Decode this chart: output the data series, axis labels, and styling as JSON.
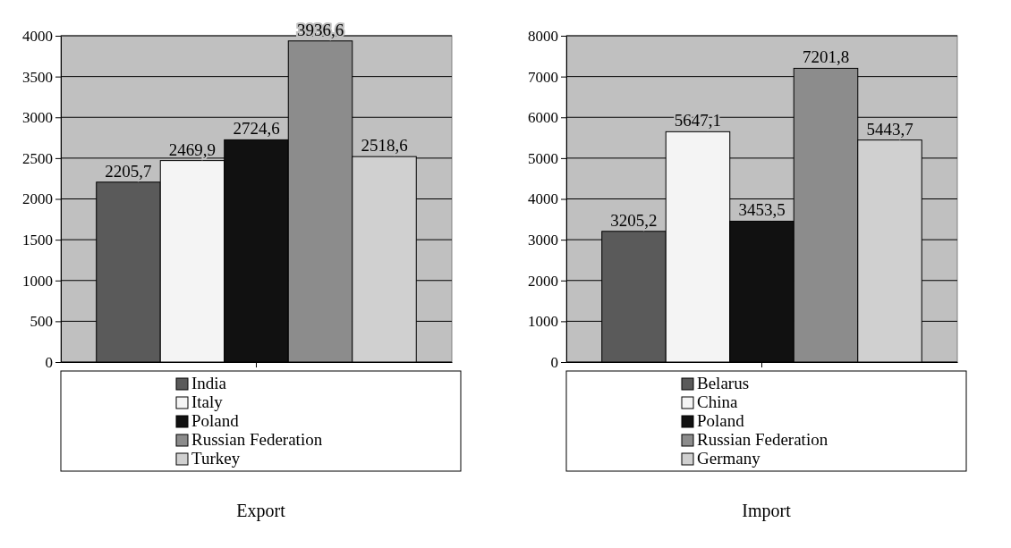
{
  "chart_data": [
    {
      "type": "bar",
      "title": "Export",
      "categories": [
        null
      ],
      "ylim": [
        0,
        4000
      ],
      "yticks": [
        0,
        500,
        1000,
        1500,
        2000,
        2500,
        3000,
        3500,
        4000
      ],
      "grid": "y",
      "legend": "bottom",
      "series": [
        {
          "name": "India",
          "color": "#5a5a5a",
          "values": [
            2205.7
          ],
          "value_labels": [
            "2205,7"
          ]
        },
        {
          "name": "Italy",
          "color": "#f4f4f4",
          "values": [
            2469.9
          ],
          "value_labels": [
            "2469,9"
          ]
        },
        {
          "name": "Poland",
          "color": "#111111",
          "values": [
            2724.6
          ],
          "value_labels": [
            "2724,6"
          ]
        },
        {
          "name": "Russian Federation",
          "color": "#8c8c8c",
          "values": [
            3936.6
          ],
          "value_labels": [
            "3936,6"
          ]
        },
        {
          "name": "Turkey",
          "color": "#d0d0d0",
          "values": [
            2518.6
          ],
          "value_labels": [
            "2518,6"
          ]
        }
      ]
    },
    {
      "type": "bar",
      "title": "Import",
      "categories": [
        null
      ],
      "ylim": [
        0,
        8000
      ],
      "yticks": [
        0,
        1000,
        2000,
        3000,
        4000,
        5000,
        6000,
        7000,
        8000
      ],
      "grid": "y",
      "legend": "bottom",
      "series": [
        {
          "name": "Belarus",
          "color": "#5a5a5a",
          "values": [
            3205.2
          ],
          "value_labels": [
            "3205,2"
          ]
        },
        {
          "name": "China",
          "color": "#f4f4f4",
          "values": [
            5647.1
          ],
          "value_labels": [
            "5647,1"
          ]
        },
        {
          "name": "Poland",
          "color": "#111111",
          "values": [
            3453.5
          ],
          "value_labels": [
            "3453,5"
          ]
        },
        {
          "name": "Russian Federation",
          "color": "#8c8c8c",
          "values": [
            7201.8
          ],
          "value_labels": [
            "7201,8"
          ]
        },
        {
          "name": "Germany",
          "color": "#d0d0d0",
          "values": [
            5443.7
          ],
          "value_labels": [
            "5443,7"
          ]
        }
      ]
    }
  ]
}
